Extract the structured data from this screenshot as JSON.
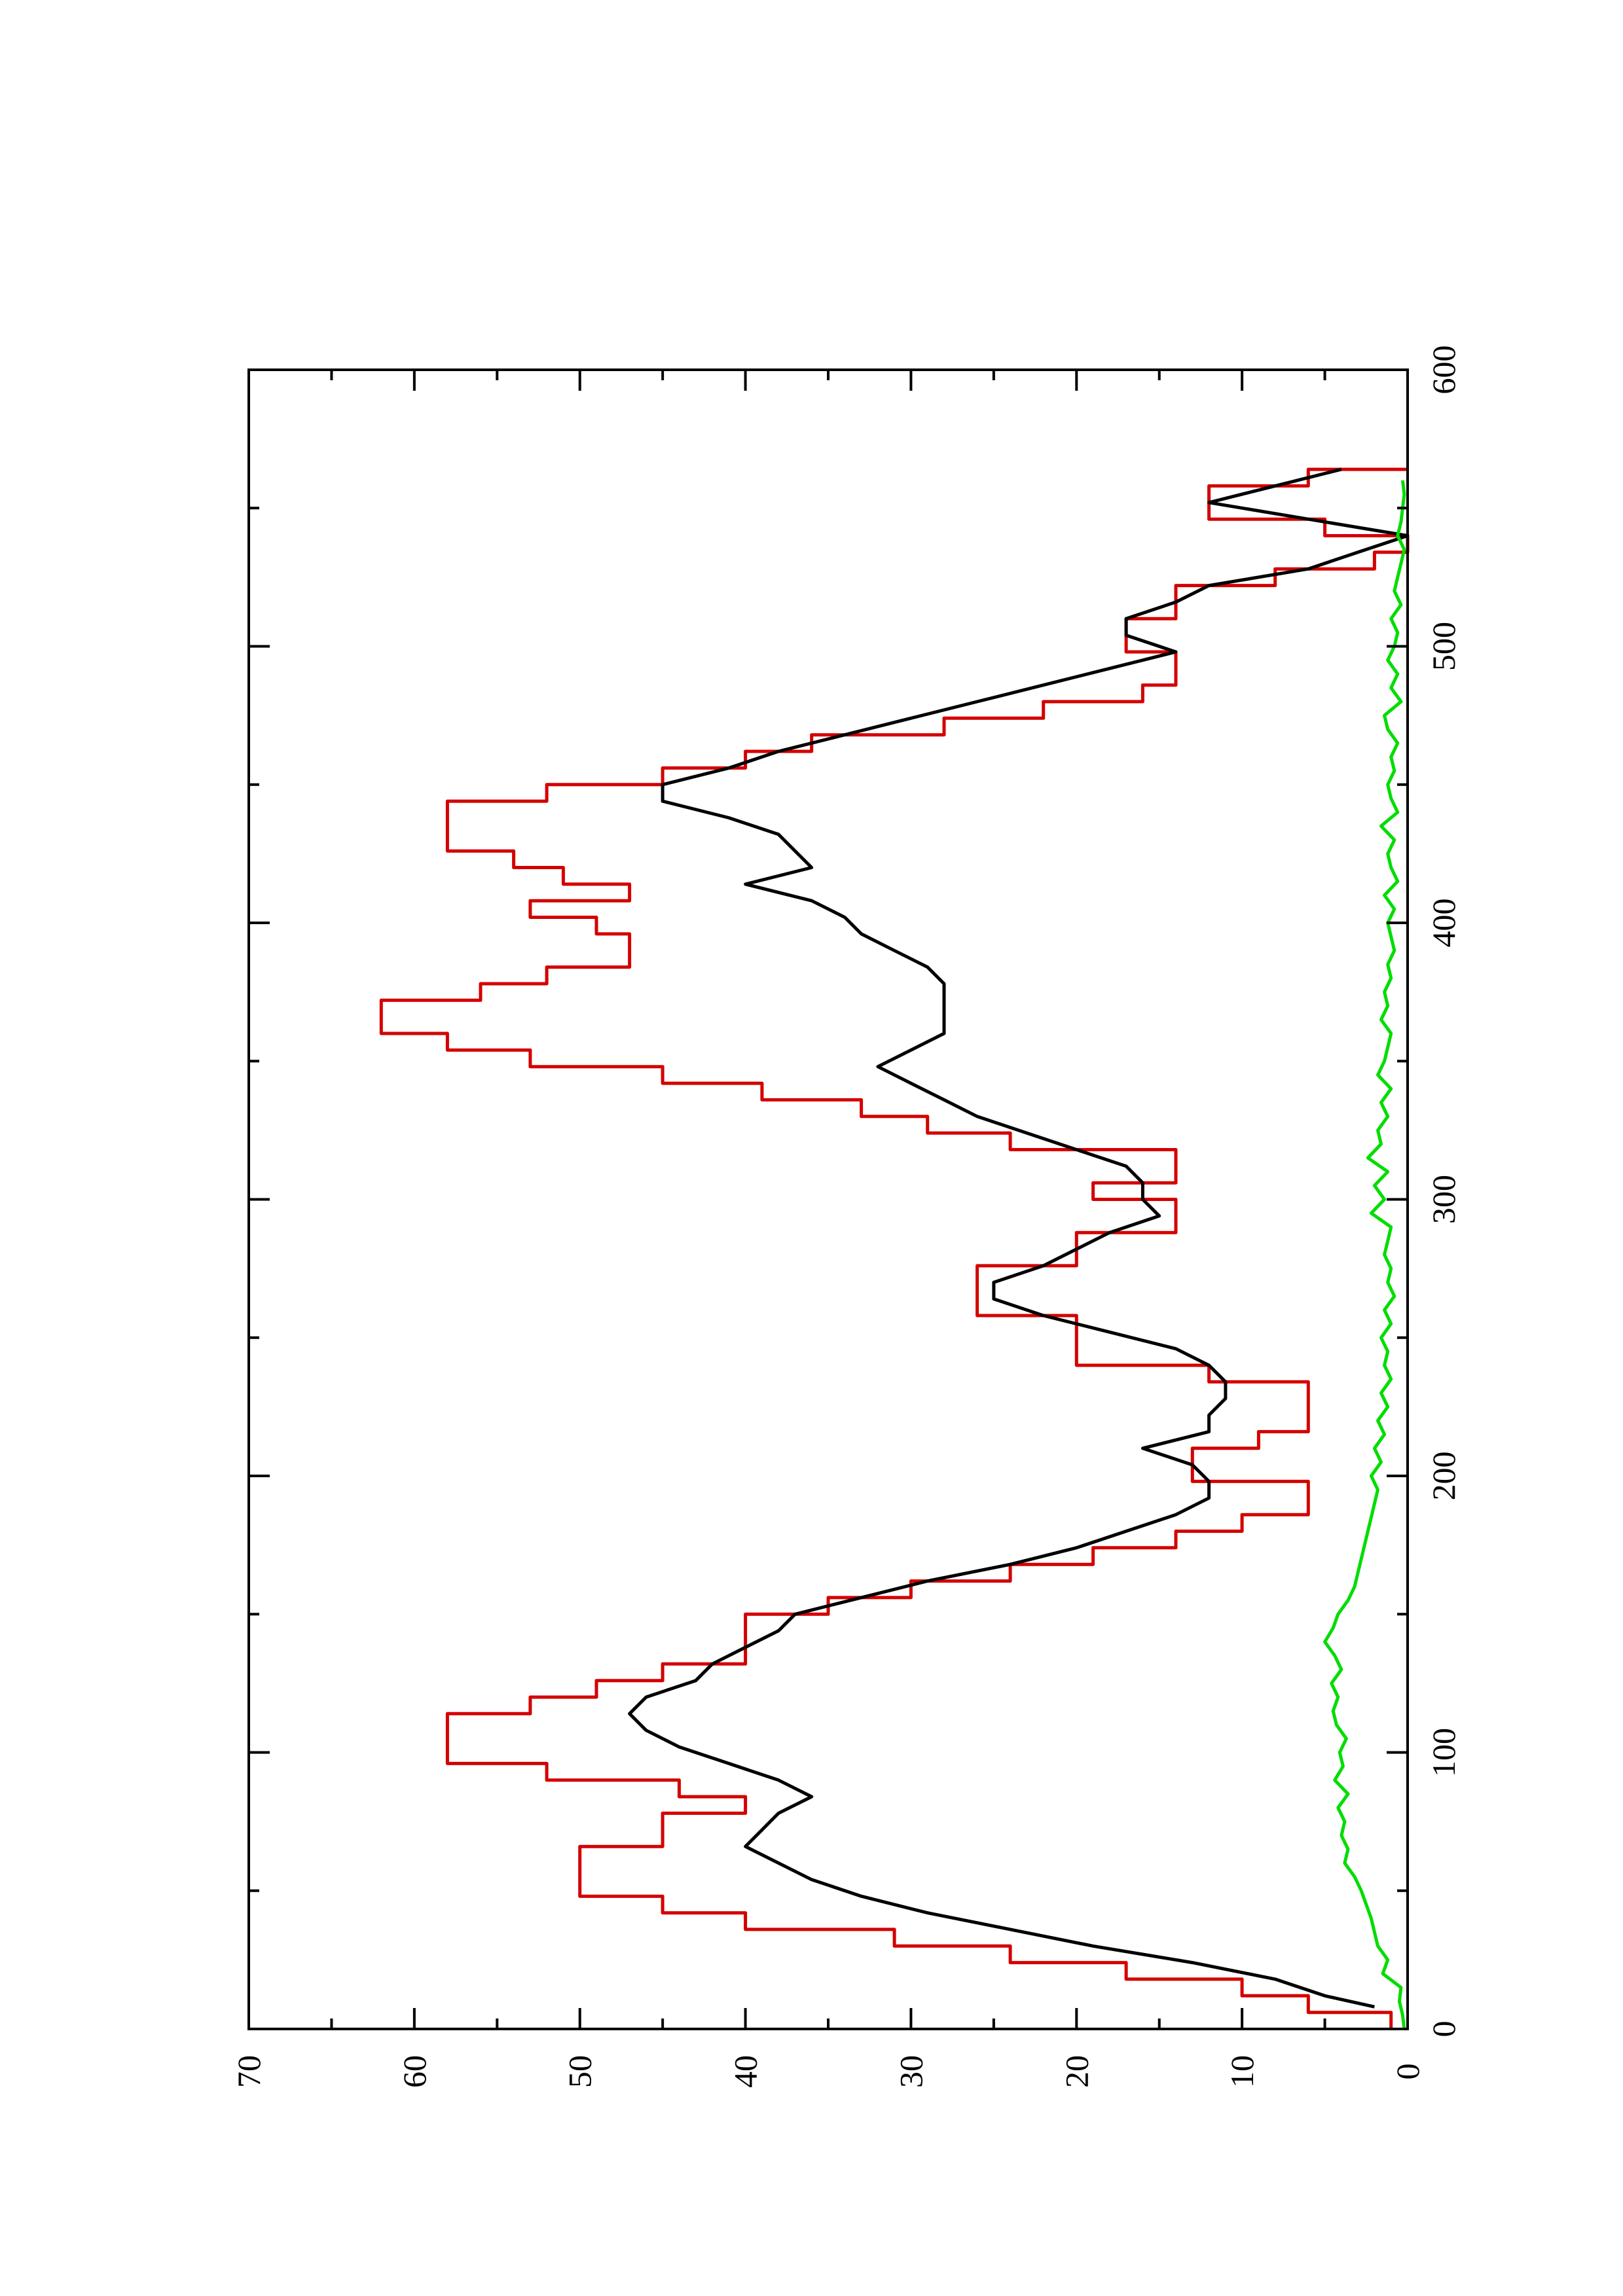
{
  "chart_data": {
    "type": "line",
    "orientation": "rotated-90-ccw",
    "title": "",
    "xlabel": "",
    "ylabel": "",
    "xlim": [
      0,
      600
    ],
    "ylim": [
      0,
      70
    ],
    "x_ticks": [
      0,
      100,
      200,
      300,
      400,
      500,
      600
    ],
    "y_ticks": [
      0,
      10,
      20,
      30,
      40,
      50,
      60,
      70
    ],
    "grid": false,
    "legend": "none",
    "series": [
      {
        "color": "#d40000",
        "style": "step",
        "x": [
          0,
          6,
          12,
          18,
          24,
          30,
          36,
          42,
          48,
          54,
          60,
          66,
          72,
          78,
          84,
          90,
          96,
          102,
          108,
          114,
          120,
          126,
          132,
          138,
          144,
          150,
          156,
          162,
          168,
          174,
          180,
          186,
          192,
          198,
          204,
          210,
          216,
          222,
          228,
          234,
          240,
          246,
          252,
          258,
          264,
          270,
          276,
          282,
          288,
          294,
          300,
          306,
          312,
          318,
          324,
          330,
          336,
          342,
          348,
          354,
          360,
          366,
          372,
          378,
          384,
          390,
          396,
          402,
          408,
          414,
          420,
          426,
          432,
          438,
          444,
          450,
          456,
          462,
          468,
          474,
          480,
          486,
          492,
          498,
          504,
          510,
          516,
          522,
          528,
          534,
          540,
          546,
          552,
          558,
          564
        ],
        "y": [
          1,
          6,
          10,
          17,
          24,
          31,
          40,
          45,
          50,
          50,
          50,
          45,
          45,
          40,
          44,
          52,
          58,
          58,
          58,
          53,
          49,
          45,
          40,
          40,
          40,
          35,
          30,
          24,
          19,
          14,
          10,
          6,
          6,
          13,
          13,
          9,
          6,
          6,
          6,
          12,
          20,
          20,
          20,
          26,
          26,
          26,
          20,
          20,
          14,
          14,
          19,
          14,
          14,
          24,
          29,
          33,
          39,
          45,
          53,
          58,
          62,
          62,
          56,
          52,
          47,
          47,
          49,
          53,
          47,
          51,
          54,
          58,
          58,
          58,
          52,
          45,
          40,
          36,
          28,
          22,
          16,
          14,
          14,
          17,
          17,
          14,
          14,
          8,
          2,
          0,
          5,
          12,
          12,
          6,
          0
        ]
      },
      {
        "color": "#000000",
        "style": "line",
        "x": [
          8,
          12,
          18,
          24,
          30,
          36,
          42,
          48,
          54,
          60,
          66,
          72,
          78,
          84,
          90,
          96,
          102,
          108,
          114,
          120,
          126,
          132,
          138,
          144,
          150,
          156,
          162,
          168,
          174,
          180,
          186,
          192,
          198,
          204,
          210,
          216,
          222,
          228,
          234,
          240,
          246,
          252,
          258,
          264,
          270,
          276,
          282,
          288,
          294,
          300,
          306,
          312,
          318,
          324,
          330,
          336,
          342,
          348,
          354,
          360,
          366,
          372,
          378,
          384,
          390,
          396,
          402,
          408,
          414,
          420,
          426,
          432,
          438,
          444,
          450,
          456,
          462,
          468,
          474,
          480,
          486,
          492,
          498,
          504,
          510,
          516,
          522,
          528,
          534,
          540,
          546,
          552,
          558,
          564
        ],
        "y": [
          2,
          5,
          8,
          13,
          19,
          24,
          29,
          33,
          36,
          38,
          40,
          39,
          38,
          36,
          38,
          41,
          44,
          46,
          47,
          46,
          43,
          42,
          40,
          38,
          37,
          33,
          29,
          24,
          20,
          17,
          14,
          12,
          12,
          13,
          16,
          12,
          12,
          11,
          11,
          12,
          14,
          18,
          22,
          25,
          25,
          22,
          20,
          18,
          15,
          16,
          16,
          17,
          20,
          23,
          26,
          28,
          30,
          32,
          30,
          28,
          28,
          28,
          28,
          29,
          31,
          33,
          34,
          36,
          40,
          36,
          37,
          38,
          41,
          45,
          45,
          41,
          38,
          34,
          30,
          26,
          22,
          18,
          14,
          17,
          17,
          14,
          12,
          6,
          3,
          0,
          6,
          12,
          8,
          4
        ]
      },
      {
        "color": "#00dd00",
        "style": "line",
        "x": [
          0,
          5,
          10,
          15,
          20,
          25,
          30,
          35,
          40,
          45,
          50,
          55,
          60,
          65,
          70,
          75,
          80,
          85,
          90,
          95,
          100,
          105,
          110,
          115,
          120,
          125,
          130,
          135,
          140,
          145,
          150,
          155,
          160,
          165,
          170,
          175,
          180,
          185,
          190,
          195,
          200,
          205,
          210,
          215,
          220,
          225,
          230,
          235,
          240,
          245,
          250,
          255,
          260,
          265,
          270,
          275,
          280,
          285,
          290,
          295,
          300,
          305,
          310,
          315,
          320,
          325,
          330,
          335,
          340,
          345,
          350,
          355,
          360,
          365,
          370,
          375,
          380,
          385,
          390,
          395,
          400,
          405,
          410,
          415,
          420,
          425,
          430,
          435,
          440,
          445,
          450,
          455,
          460,
          465,
          470,
          475,
          480,
          485,
          490,
          495,
          500,
          505,
          510,
          515,
          520,
          525,
          530,
          535,
          540,
          545,
          550,
          555,
          560
        ],
        "y": [
          0.2,
          0.3,
          0.5,
          0.4,
          1.5,
          1.2,
          1.8,
          2.0,
          2.2,
          2.5,
          2.8,
          3.2,
          3.8,
          3.6,
          4.0,
          3.8,
          4.2,
          3.6,
          4.4,
          3.9,
          4.1,
          3.7,
          4.3,
          4.5,
          4.2,
          4.6,
          4.0,
          4.4,
          5.0,
          4.5,
          4.2,
          3.6,
          3.2,
          3.0,
          2.8,
          2.6,
          2.4,
          2.2,
          2.0,
          1.8,
          2.2,
          1.6,
          2.0,
          1.4,
          1.8,
          1.2,
          1.6,
          1.0,
          1.4,
          1.2,
          1.6,
          1.0,
          1.4,
          0.8,
          1.2,
          1.0,
          1.4,
          1.2,
          1.0,
          2.2,
          1.4,
          2.0,
          1.2,
          2.4,
          1.6,
          1.8,
          1.2,
          1.6,
          1.0,
          1.8,
          1.4,
          1.2,
          1.0,
          1.6,
          1.2,
          1.4,
          1.0,
          1.2,
          0.8,
          1.0,
          1.2,
          0.8,
          1.4,
          0.6,
          1.0,
          1.2,
          0.8,
          1.6,
          0.6,
          1.0,
          1.2,
          0.8,
          1.0,
          0.6,
          1.2,
          1.4,
          0.4,
          1.0,
          0.6,
          1.2,
          0.8,
          0.6,
          1.0,
          0.4,
          0.8,
          0.6,
          0.4,
          0.2,
          0.6,
          0.4,
          0.3,
          0.2,
          0.3
        ]
      }
    ]
  }
}
